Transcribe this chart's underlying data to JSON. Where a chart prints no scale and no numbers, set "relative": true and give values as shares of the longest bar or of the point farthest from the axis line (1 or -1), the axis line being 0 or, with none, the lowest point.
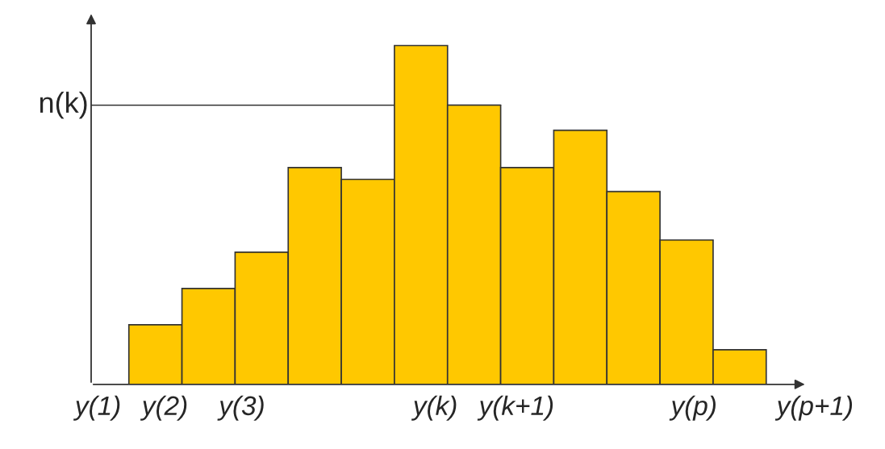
{
  "chart_data": {
    "type": "bar",
    "relative": true,
    "color": "#ffc800",
    "categories": [
      null,
      null,
      null,
      null,
      null,
      null,
      null,
      null,
      null,
      null,
      null,
      null
    ],
    "values": [
      0.176,
      0.283,
      0.39,
      0.64,
      0.605,
      1,
      0.824,
      0.64,
      0.75,
      0.569,
      0.426,
      0.102
    ],
    "annotations": [
      "y(1)",
      "y(2)",
      "y(3)",
      "y(k)",
      "y(k+1)",
      "y(p)",
      "y(p+1)"
    ],
    "ref_lines": [
      {
        "axis": "y",
        "value": 0.824,
        "label": "n(k)",
        "color": "#333333"
      }
    ]
  }
}
